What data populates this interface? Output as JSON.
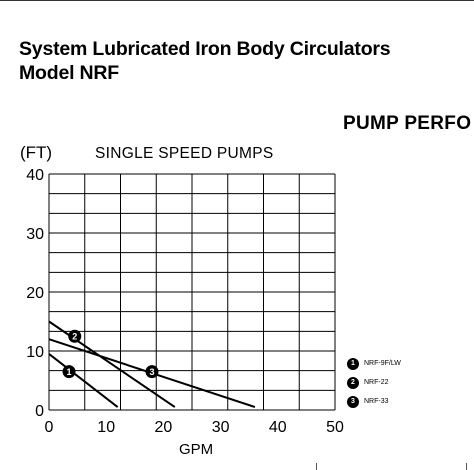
{
  "header": {
    "title_line1": "System Lubricated Iron Body Circulators",
    "title_line2": "Model NRF",
    "section": "PUMP PERFO"
  },
  "chart_data": {
    "type": "line",
    "title": "SINGLE SPEED PUMPS",
    "xlabel": "GPM",
    "ylabel": "(FT)",
    "xlim": [
      0,
      50
    ],
    "ylim": [
      0,
      40
    ],
    "x_ticks": [
      0,
      10,
      20,
      30,
      40,
      50
    ],
    "y_ticks": [
      0,
      10,
      20,
      30,
      40
    ],
    "grid": true,
    "legend_position": "right",
    "series": [
      {
        "name": "NRF-9F/LW",
        "badge": "1",
        "points": [
          [
            0,
            9.5
          ],
          [
            12,
            0.5
          ]
        ],
        "marker_at": [
          3.5,
          6.5
        ]
      },
      {
        "name": "NRF-22",
        "badge": "2",
        "points": [
          [
            0,
            15
          ],
          [
            22,
            0.5
          ]
        ],
        "marker_at": [
          4.5,
          12.5
        ]
      },
      {
        "name": "NRF-33",
        "badge": "3",
        "points": [
          [
            0,
            12
          ],
          [
            36,
            0.5
          ]
        ],
        "marker_at": [
          18,
          6.5
        ]
      }
    ]
  }
}
